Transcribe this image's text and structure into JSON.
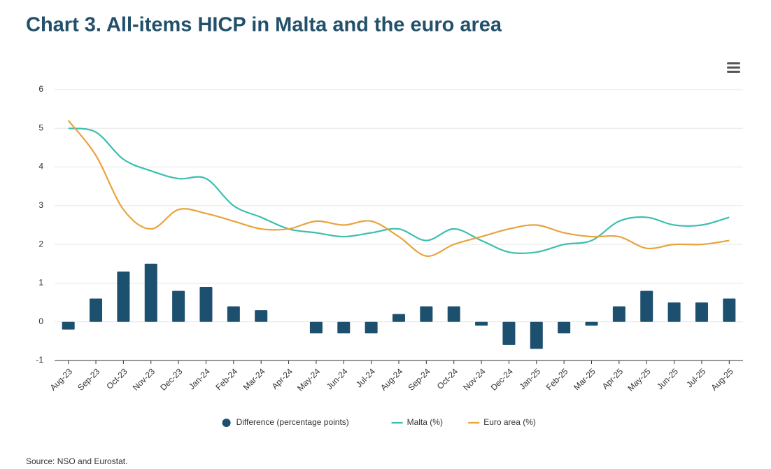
{
  "chart_data": {
    "type": "combo",
    "title": "Chart 3. All-items HICP in Malta and the euro area",
    "source": "Source: NSO and Eurostat.",
    "categories": [
      "Aug-23",
      "Sep-23",
      "Oct-23",
      "Nov-23",
      "Dec-23",
      "Jan-24",
      "Feb-24",
      "Mar-24",
      "Apr-24",
      "May-24",
      "Jun-24",
      "Jul-24",
      "Aug-24",
      "Sep-24",
      "Oct-24",
      "Nov-24",
      "Dec-24",
      "Jan-25",
      "Feb-25",
      "Mar-25",
      "Apr-25",
      "May-25",
      "Jun-25",
      "Jul-25",
      "Aug-25"
    ],
    "series": [
      {
        "name": "Difference (percentage points)",
        "type": "bar",
        "color": "#1d4f6e",
        "values": [
          -0.2,
          0.6,
          1.3,
          1.5,
          0.8,
          0.9,
          0.4,
          0.3,
          0,
          -0.3,
          -0.3,
          -0.3,
          0.2,
          0.4,
          0.4,
          -0.1,
          -0.6,
          -0.7,
          -0.3,
          -0.1,
          0.4,
          0.8,
          0.5,
          0.5,
          0.6
        ]
      },
      {
        "name": "Malta (%)",
        "type": "line",
        "color": "#3cbfae",
        "values": [
          5.0,
          4.9,
          4.2,
          3.9,
          3.7,
          3.7,
          3.0,
          2.7,
          2.4,
          2.3,
          2.2,
          2.3,
          2.4,
          2.1,
          2.4,
          2.1,
          1.8,
          1.8,
          2.0,
          2.1,
          2.6,
          2.7,
          2.5,
          2.5,
          2.7
        ]
      },
      {
        "name": "Euro area (%)",
        "type": "line",
        "color": "#e8a33d",
        "values": [
          5.2,
          4.3,
          2.9,
          2.4,
          2.9,
          2.8,
          2.6,
          2.4,
          2.4,
          2.6,
          2.5,
          2.6,
          2.2,
          1.7,
          2.0,
          2.2,
          2.4,
          2.5,
          2.3,
          2.2,
          2.2,
          1.9,
          2.0,
          2.0,
          2.1
        ]
      }
    ],
    "ylim": [
      -1,
      6
    ],
    "yticks": [
      -1,
      0,
      1,
      2,
      3,
      4,
      5,
      6
    ],
    "grid": true,
    "legend": "bottom"
  }
}
